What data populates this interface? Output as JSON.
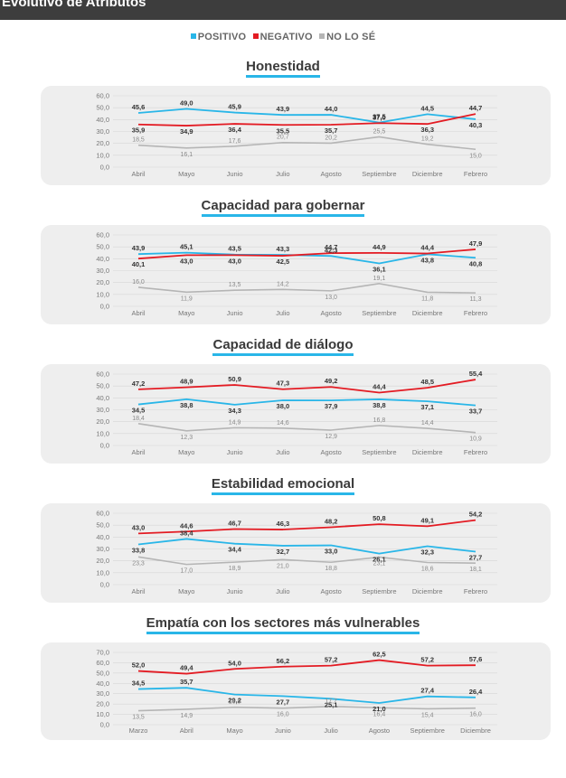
{
  "header": {
    "title": "Evolutivo de Atributos"
  },
  "legend": [
    {
      "label": "POSITIVO",
      "color": "#29b6e8"
    },
    {
      "label": "NEGATIVO",
      "color": "#e31b23"
    },
    {
      "label": "NO LO SÉ",
      "color": "#b5b5b5"
    }
  ],
  "chart_data": [
    {
      "type": "line",
      "title": "Honestidad",
      "categories": [
        "Abril",
        "Mayo",
        "Junio",
        "Julio",
        "Agosto",
        "Septiembre",
        "Diciembre",
        "Febrero"
      ],
      "ylim": [
        0,
        60
      ],
      "yticks": [
        "0,0",
        "10,0",
        "20,0",
        "30,0",
        "40,0",
        "50,0",
        "60,0"
      ],
      "series": [
        {
          "name": "POSITIVO",
          "color": "#29b6e8",
          "values": [
            45.6,
            49.0,
            45.9,
            43.9,
            44.0,
            37.5,
            44.5,
            40.3
          ]
        },
        {
          "name": "NEGATIVO",
          "color": "#e31b23",
          "values": [
            35.9,
            34.9,
            36.4,
            35.5,
            35.7,
            37.0,
            36.3,
            44.7
          ]
        },
        {
          "name": "NO LO SÉ",
          "color": "#b5b5b5",
          "values": [
            18.5,
            16.1,
            17.6,
            20.7,
            20.2,
            25.5,
            19.2,
            15.0
          ]
        }
      ],
      "labels": [
        [
          "45,6",
          "49,0",
          "45,9",
          "43,9",
          "44,0",
          "37,5",
          "44,5",
          "40,3"
        ],
        [
          "35,9",
          "34,9",
          "36,4",
          "35,5",
          "35,7",
          "37,0",
          "36,3",
          "44,7"
        ],
        [
          "18,5",
          "16,1",
          "17,6",
          "20,7",
          "20,2",
          "25,5",
          "19,2",
          "15,0"
        ]
      ]
    },
    {
      "type": "line",
      "title": "Capacidad para gobernar",
      "categories": [
        "Abril",
        "Mayo",
        "Junio",
        "Julio",
        "Agosto",
        "Septiembre",
        "Diciembre",
        "Febrero"
      ],
      "ylim": [
        0,
        60
      ],
      "yticks": [
        "0,0",
        "10,0",
        "20,0",
        "30,0",
        "40,0",
        "50,0",
        "60,0"
      ],
      "series": [
        {
          "name": "POSITIVO",
          "color": "#29b6e8",
          "values": [
            43.9,
            45.1,
            43.5,
            43.3,
            42.3,
            36.1,
            43.8,
            40.8
          ]
        },
        {
          "name": "NEGATIVO",
          "color": "#e31b23",
          "values": [
            40.1,
            43.0,
            43.0,
            42.5,
            44.7,
            44.9,
            44.4,
            47.9
          ]
        },
        {
          "name": "NO LO SÉ",
          "color": "#b5b5b5",
          "values": [
            16.0,
            11.9,
            13.5,
            14.2,
            13.0,
            19.1,
            11.8,
            11.3
          ]
        }
      ],
      "labels": [
        [
          "43,9",
          "45,1",
          "43,5",
          "43,3",
          "42,3",
          "36,1",
          "43,8",
          "40,8"
        ],
        [
          "40,1",
          "43,0",
          "43,0",
          "42,5",
          "44,7",
          "44,9",
          "44,4",
          "47,9"
        ],
        [
          "16,0",
          "11,9",
          "13,5",
          "14,2",
          "13,0",
          "19,1",
          "11,8",
          "11,3"
        ]
      ]
    },
    {
      "type": "line",
      "title": "Capacidad de diálogo",
      "categories": [
        "Abril",
        "Mayo",
        "Junio",
        "Julio",
        "Agosto",
        "Septiembre",
        "Diciembre",
        "Febrero"
      ],
      "ylim": [
        0,
        60
      ],
      "yticks": [
        "0,0",
        "10,0",
        "20,0",
        "30,0",
        "40,0",
        "50,0",
        "60,0"
      ],
      "series": [
        {
          "name": "POSITIVO",
          "color": "#29b6e8",
          "values": [
            34.5,
            38.8,
            34.3,
            38.0,
            37.9,
            38.8,
            37.1,
            33.7
          ]
        },
        {
          "name": "NEGATIVO",
          "color": "#e31b23",
          "values": [
            47.2,
            48.9,
            50.9,
            47.3,
            49.2,
            44.4,
            48.5,
            55.4
          ]
        },
        {
          "name": "NO LO SÉ",
          "color": "#b5b5b5",
          "values": [
            18.4,
            12.3,
            14.9,
            14.6,
            12.9,
            16.8,
            14.4,
            10.9
          ]
        }
      ],
      "labels": [
        [
          "34,5",
          "38,8",
          "34,3",
          "38,0",
          "37,9",
          "38,8",
          "37,1",
          "33,7"
        ],
        [
          "47,2",
          "48,9",
          "50,9",
          "47,3",
          "49,2",
          "44,4",
          "48,5",
          "55,4"
        ],
        [
          "18,4",
          "12,3",
          "14,9",
          "14,6",
          "12,9",
          "16,8",
          "14,4",
          "10,9"
        ]
      ]
    },
    {
      "type": "line",
      "title": "Estabilidad emocional",
      "categories": [
        "Abril",
        "Mayo",
        "Junio",
        "Julio",
        "Agosto",
        "Septiembre",
        "Diciembre",
        "Febrero"
      ],
      "ylim": [
        0,
        60
      ],
      "yticks": [
        "0,0",
        "10,0",
        "20,0",
        "30,0",
        "40,0",
        "50,0",
        "60,0"
      ],
      "series": [
        {
          "name": "POSITIVO",
          "color": "#29b6e8",
          "values": [
            33.8,
            38.4,
            34.4,
            32.7,
            33.0,
            26.1,
            32.3,
            27.7
          ]
        },
        {
          "name": "NEGATIVO",
          "color": "#e31b23",
          "values": [
            43.0,
            44.6,
            46.7,
            46.3,
            48.2,
            50.8,
            49.1,
            54.2
          ]
        },
        {
          "name": "NO LO SÉ",
          "color": "#b5b5b5",
          "values": [
            23.3,
            17.0,
            18.9,
            21.0,
            18.8,
            23.1,
            18.6,
            18.1
          ]
        }
      ],
      "labels": [
        [
          "33,8",
          "38,4",
          "34,4",
          "32,7",
          "33,0",
          "26,1",
          "32,3",
          "27,7"
        ],
        [
          "43,0",
          "44,6",
          "46,7",
          "46,3",
          "48,2",
          "50,8",
          "49,1",
          "54,2"
        ],
        [
          "23,3",
          "17,0",
          "18,9",
          "21,0",
          "18,8",
          "23,1",
          "18,6",
          "18,1"
        ]
      ]
    },
    {
      "type": "line",
      "title": "Empatía con los sectores más vulnerables",
      "categories": [
        "Marzo",
        "Abril",
        "Mayo",
        "Junio",
        "Julio",
        "Agosto",
        "Septiembre",
        "Diciembre"
      ],
      "ylim": [
        0,
        70
      ],
      "yticks": [
        "0,0",
        "10,0",
        "20,0",
        "30,0",
        "40,0",
        "50,0",
        "60,0",
        "70,0"
      ],
      "series": [
        {
          "name": "POSITIVO",
          "color": "#29b6e8",
          "values": [
            34.5,
            35.7,
            29.2,
            27.7,
            25.1,
            21.0,
            27.4,
            26.4
          ]
        },
        {
          "name": "NEGATIVO",
          "color": "#e31b23",
          "values": [
            52.0,
            49.4,
            54.0,
            56.2,
            57.2,
            62.5,
            57.2,
            57.6
          ]
        },
        {
          "name": "NO LO SÉ",
          "color": "#b5b5b5",
          "values": [
            13.5,
            14.9,
            16.9,
            16.0,
            17.7,
            16.4,
            15.4,
            16.0
          ]
        }
      ],
      "labels": [
        [
          "34,5",
          "35,7",
          "29,2",
          "27,7",
          "25,1",
          "21,0",
          "27,4",
          "26,4"
        ],
        [
          "52,0",
          "49,4",
          "54,0",
          "56,2",
          "57,2",
          "62,5",
          "57,2",
          "57,6"
        ],
        [
          "13,5",
          "14,9",
          "16,9",
          "16,0",
          "17,7",
          "16,4",
          "15,4",
          "16,0"
        ]
      ]
    }
  ]
}
